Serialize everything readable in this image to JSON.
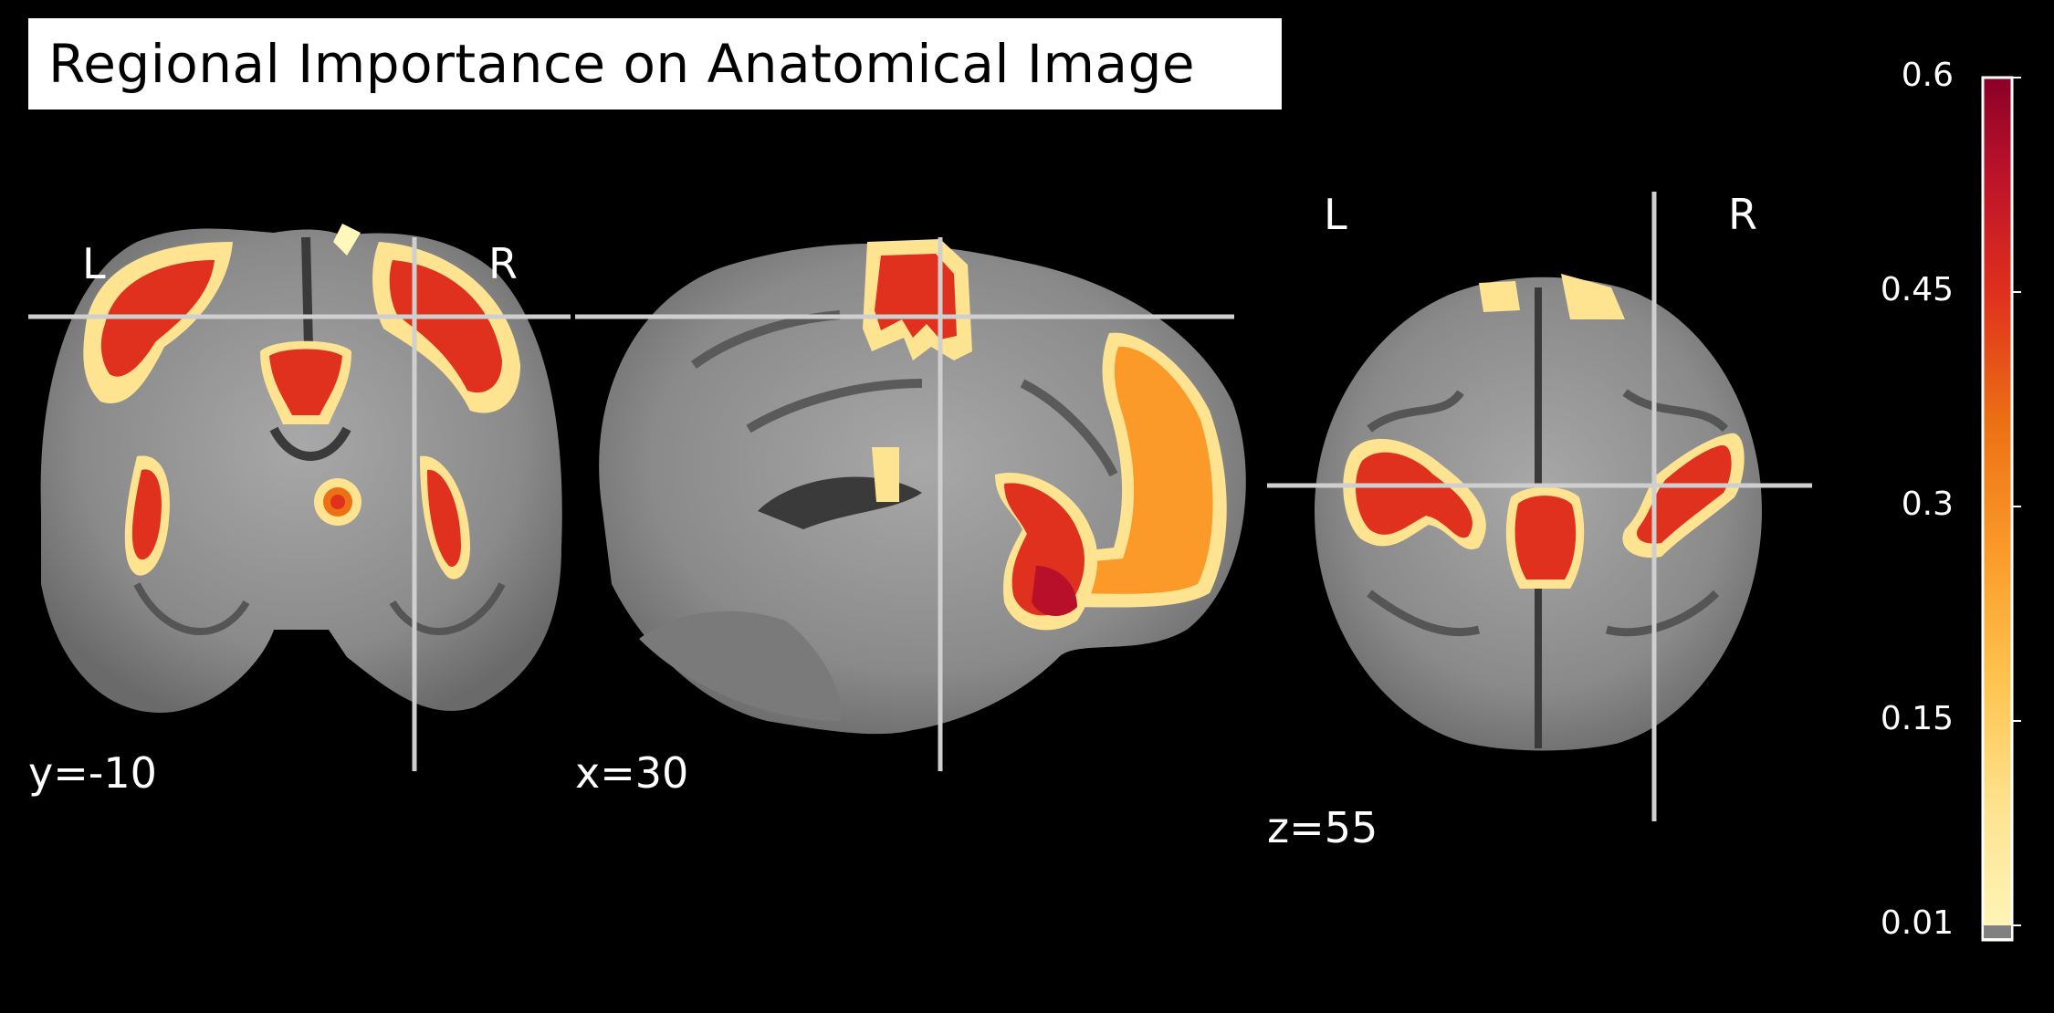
{
  "title": "Regional Importance on Anatomical Image",
  "views": [
    {
      "orientation_left": "L",
      "orientation_right": "R",
      "coordinate": "y=-10"
    },
    {
      "coordinate": "x=30"
    },
    {
      "orientation_left": "L",
      "orientation_right": "R",
      "coordinate": "z=55"
    }
  ],
  "colorbar": {
    "ticks": [
      "0.6",
      "0.45",
      "0.3",
      "0.15",
      "0.01"
    ],
    "colors": [
      "#fff7bc",
      "#fee391",
      "#fec44f",
      "#fb9a29",
      "#ec7014",
      "#e0301e",
      "#b8102a",
      "#8b0027"
    ]
  }
}
